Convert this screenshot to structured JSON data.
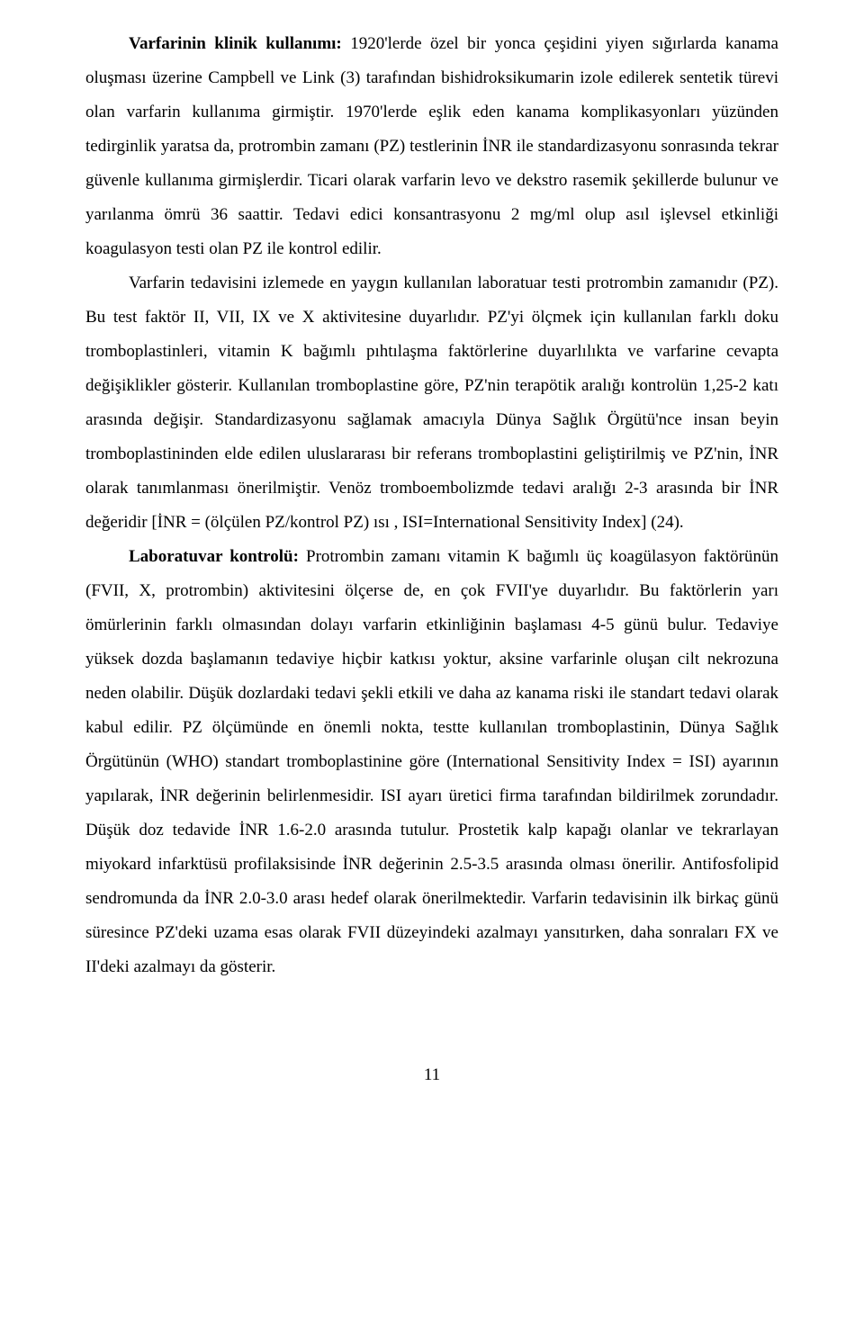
{
  "p1": {
    "lead_bold": "Varfarinin klinik kullanımı:",
    "rest": " 1920'lerde özel bir yonca çeşidini yiyen sığırlarda kanama oluşması üzerine Campbell ve Link (3) tarafından bishidroksikumarin izole edilerek sentetik türevi olan varfarin kullanıma girmiştir. 1970'lerde eşlik eden kanama komplikasyonları yüzünden tedirginlik yaratsa da, protrombin zamanı (PZ) testlerinin İNR ile standardizasyonu sonrasında tekrar güvenle kullanıma girmişlerdir. Ticari olarak varfarin levo ve dekstro rasemik şekillerde bulunur ve yarılanma ömrü 36 saattir. Tedavi edici konsantrasyonu 2 mg/ml olup asıl işlevsel etkinliği koagulasyon testi olan PZ ile kontrol edilir."
  },
  "p2": {
    "text": "Varfarin tedavisini izlemede en yaygın kullanılan laboratuar testi protrombin zamanıdır (PZ). Bu test faktör II, VII, IX ve X aktivitesine duyarlıdır. PZ'yi ölçmek için kullanılan farklı doku tromboplastinleri, vitamin K bağımlı pıhtılaşma faktörlerine duyarlılıkta ve varfarine cevapta değişiklikler gösterir. Kullanılan tromboplastine göre, PZ'nin terapötik aralığı kontrolün 1,25-2 katı arasında değişir. Standardizasyonu sağlamak amacıyla Dünya Sağlık Örgütü'nce insan beyin tromboplastininden elde edilen uluslararası bir referans tromboplastini geliştirilmiş ve PZ'nin, İNR olarak tanımlanması önerilmiştir. Venöz tromboembolizmde tedavi aralığı 2-3 arasında bir İNR değeridir [İNR = (ölçülen PZ/kontrol PZ) ısı , ISI=International Sensitivity Index] (24)."
  },
  "p3": {
    "lead_bold": "Laboratuvar kontrolü:",
    "rest": " Protrombin zamanı vitamin K bağımlı üç koagülasyon faktörünün (FVII, X, protrombin)  aktivitesini ölçerse de, en çok FVII'ye duyarlıdır. Bu faktörlerin yarı ömürlerinin farklı olmasından dolayı varfarin etkinliğinin başlaması 4-5 günü bulur. Tedaviye yüksek dozda başlamanın tedaviye hiçbir katkısı yoktur, aksine varfarinle oluşan cilt nekrozuna neden olabilir. Düşük dozlardaki tedavi şekli etkili ve daha az kanama riski ile standart tedavi olarak kabul edilir. PZ ölçümünde en önemli nokta, testte kullanılan tromboplastinin, Dünya Sağlık Örgütünün (WHO) standart tromboplastinine göre (International Sensitivity Index = ISI) ayarının yapılarak, İNR değerinin belirlenmesidir. ISI ayarı üretici firma tarafından bildirilmek zorundadır.  Düşük doz tedavide İNR 1.6-2.0 arasında tutulur. Prostetik kalp kapağı olanlar ve tekrarlayan miyokard infarktüsü profilaksisinde İNR değerinin 2.5-3.5 arasında olması önerilir. Antifosfolipid sendromunda da İNR 2.0-3.0 arası hedef olarak önerilmektedir. Varfarin tedavisinin ilk birkaç günü süresince PZ'deki uzama esas olarak FVII düzeyindeki azalmayı yansıtırken, daha sonraları FX ve II'deki azalmayı da gösterir."
  },
  "page_number": "11"
}
